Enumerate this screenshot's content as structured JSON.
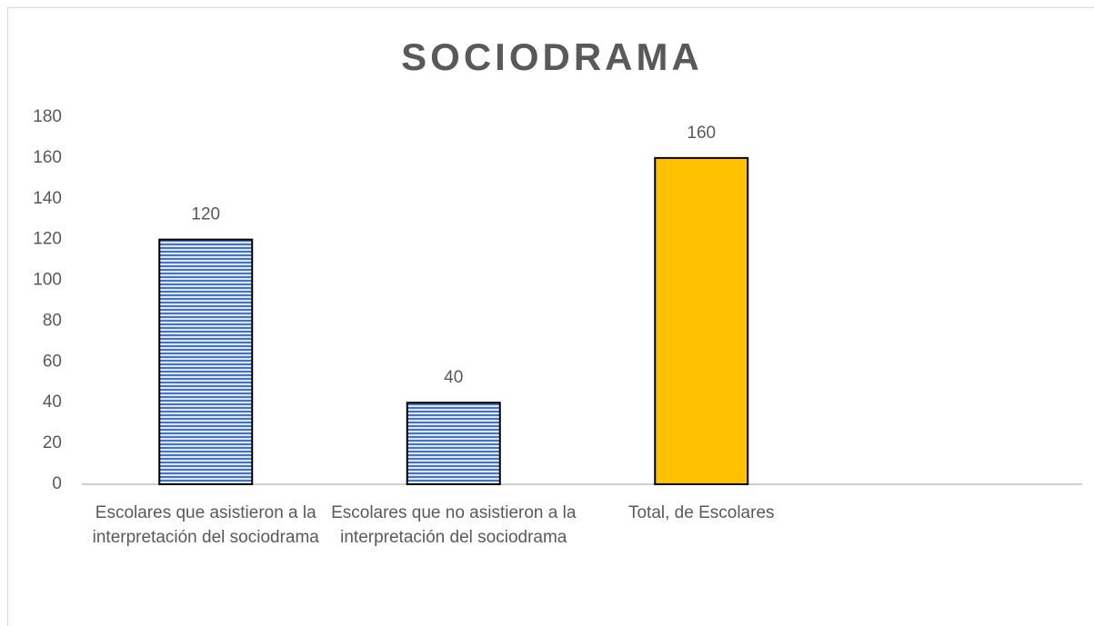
{
  "chart_data": {
    "type": "bar",
    "title": "SOCIODRAMA",
    "categories": [
      "Escolares que asistieron a la interpretación del sociodrama",
      "Escolares que no asistieron a la interpretación del sociodrama",
      "Total, de Escolares",
      null
    ],
    "values": [
      120,
      40,
      160,
      null
    ],
    "colors": [
      "#4472c4",
      "#4472c4",
      "#ffc000",
      null
    ],
    "patterns": [
      "horizontal-lines",
      "horizontal-lines",
      null,
      null
    ],
    "ylim": [
      0,
      180
    ],
    "yticks": [
      0,
      20,
      40,
      60,
      80,
      100,
      120,
      140,
      160,
      180
    ],
    "grid": false
  }
}
